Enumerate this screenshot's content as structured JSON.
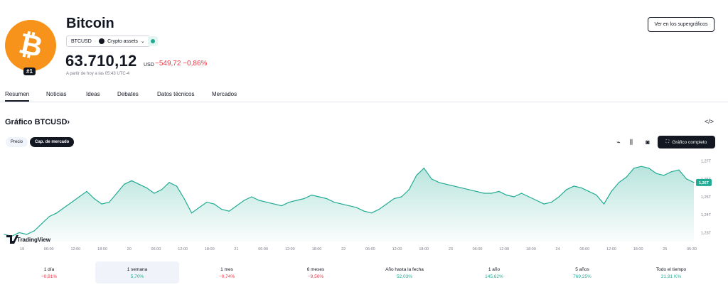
{
  "header": {
    "logo_symbol": "₿",
    "rank": "#1",
    "title": "Bitcoin",
    "symbol": "BTCUSD",
    "category": "Crypto assets",
    "price": "63.710,12",
    "currency": "USD",
    "change": "−549,72 −0,86%",
    "as_of": "A partir de hoy a las 05:43 UTC-4",
    "supergraph_button": "Ver en los supergráficos"
  },
  "tabs": [
    "Resumen",
    "Noticias",
    "Ideas",
    "Debates",
    "Datos técnicos",
    "Mercados"
  ],
  "chart_section": {
    "title": "Gráfico BTCUSD›",
    "toggle_price": "Precio",
    "toggle_marketcap": "Cap. de mercado",
    "full_chart_button": "Gráfico completo",
    "watermark": "TradingView"
  },
  "chart_data": {
    "type": "area",
    "title": "",
    "color": "#22ab94",
    "x_ticks": [
      "19",
      "06:00",
      "12:00",
      "18:00",
      "20",
      "06:00",
      "12:00",
      "18:00",
      "21",
      "06:00",
      "12:00",
      "18:00",
      "22",
      "06:00",
      "12:00",
      "18:00",
      "23",
      "06:00",
      "12:00",
      "18:00",
      "24",
      "06:00",
      "12:00",
      "18:00",
      "25",
      "05:30"
    ],
    "y_ticks": [
      "1,27T",
      "1,26T",
      "1,25T",
      "1,24T",
      "1,23T"
    ],
    "y_tick_values": [
      1.27,
      1.26,
      1.25,
      1.24,
      1.23
    ],
    "ylim": [
      1.225,
      1.275
    ],
    "last_value_label": "1,26T",
    "last_value": 1.258,
    "values": [
      1.229,
      1.228,
      1.23,
      1.229,
      1.231,
      1.235,
      1.239,
      1.241,
      1.244,
      1.247,
      1.25,
      1.253,
      1.249,
      1.246,
      1.247,
      1.252,
      1.257,
      1.259,
      1.257,
      1.255,
      1.252,
      1.254,
      1.258,
      1.256,
      1.249,
      1.241,
      1.244,
      1.247,
      1.246,
      1.243,
      1.242,
      1.245,
      1.248,
      1.25,
      1.248,
      1.247,
      1.246,
      1.245,
      1.247,
      1.248,
      1.249,
      1.251,
      1.25,
      1.249,
      1.247,
      1.246,
      1.245,
      1.244,
      1.242,
      1.241,
      1.243,
      1.246,
      1.249,
      1.25,
      1.254,
      1.262,
      1.266,
      1.26,
      1.258,
      1.257,
      1.256,
      1.255,
      1.254,
      1.253,
      1.252,
      1.252,
      1.253,
      1.251,
      1.25,
      1.252,
      1.25,
      1.248,
      1.246,
      1.247,
      1.25,
      1.254,
      1.256,
      1.255,
      1.253,
      1.251,
      1.246,
      1.253,
      1.258,
      1.261,
      1.266,
      1.267,
      1.266,
      1.263,
      1.262,
      1.264,
      1.265,
      1.26,
      1.258
    ]
  },
  "periods": [
    {
      "label": "1 día",
      "value": "−0,81%",
      "dir": "neg"
    },
    {
      "label": "1 semana",
      "value": "5,70%",
      "dir": "pos"
    },
    {
      "label": "1 mes",
      "value": "−0,74%",
      "dir": "neg"
    },
    {
      "label": "6 meses",
      "value": "−9,50%",
      "dir": "neg"
    },
    {
      "label": "Año hasta la fecha",
      "value": "52,03%",
      "dir": "pos"
    },
    {
      "label": "1 año",
      "value": "145,62%",
      "dir": "pos"
    },
    {
      "label": "5 años",
      "value": "769,25%",
      "dir": "pos"
    },
    {
      "label": "Todo el tiempo",
      "value": "21,91 K%",
      "dir": "pos"
    }
  ],
  "icons": {
    "embed": "code-icon",
    "candles": "candles-icon",
    "indicators": "indicators-icon",
    "camera": "camera-icon",
    "fullscreen": "fullscreen-icon"
  }
}
